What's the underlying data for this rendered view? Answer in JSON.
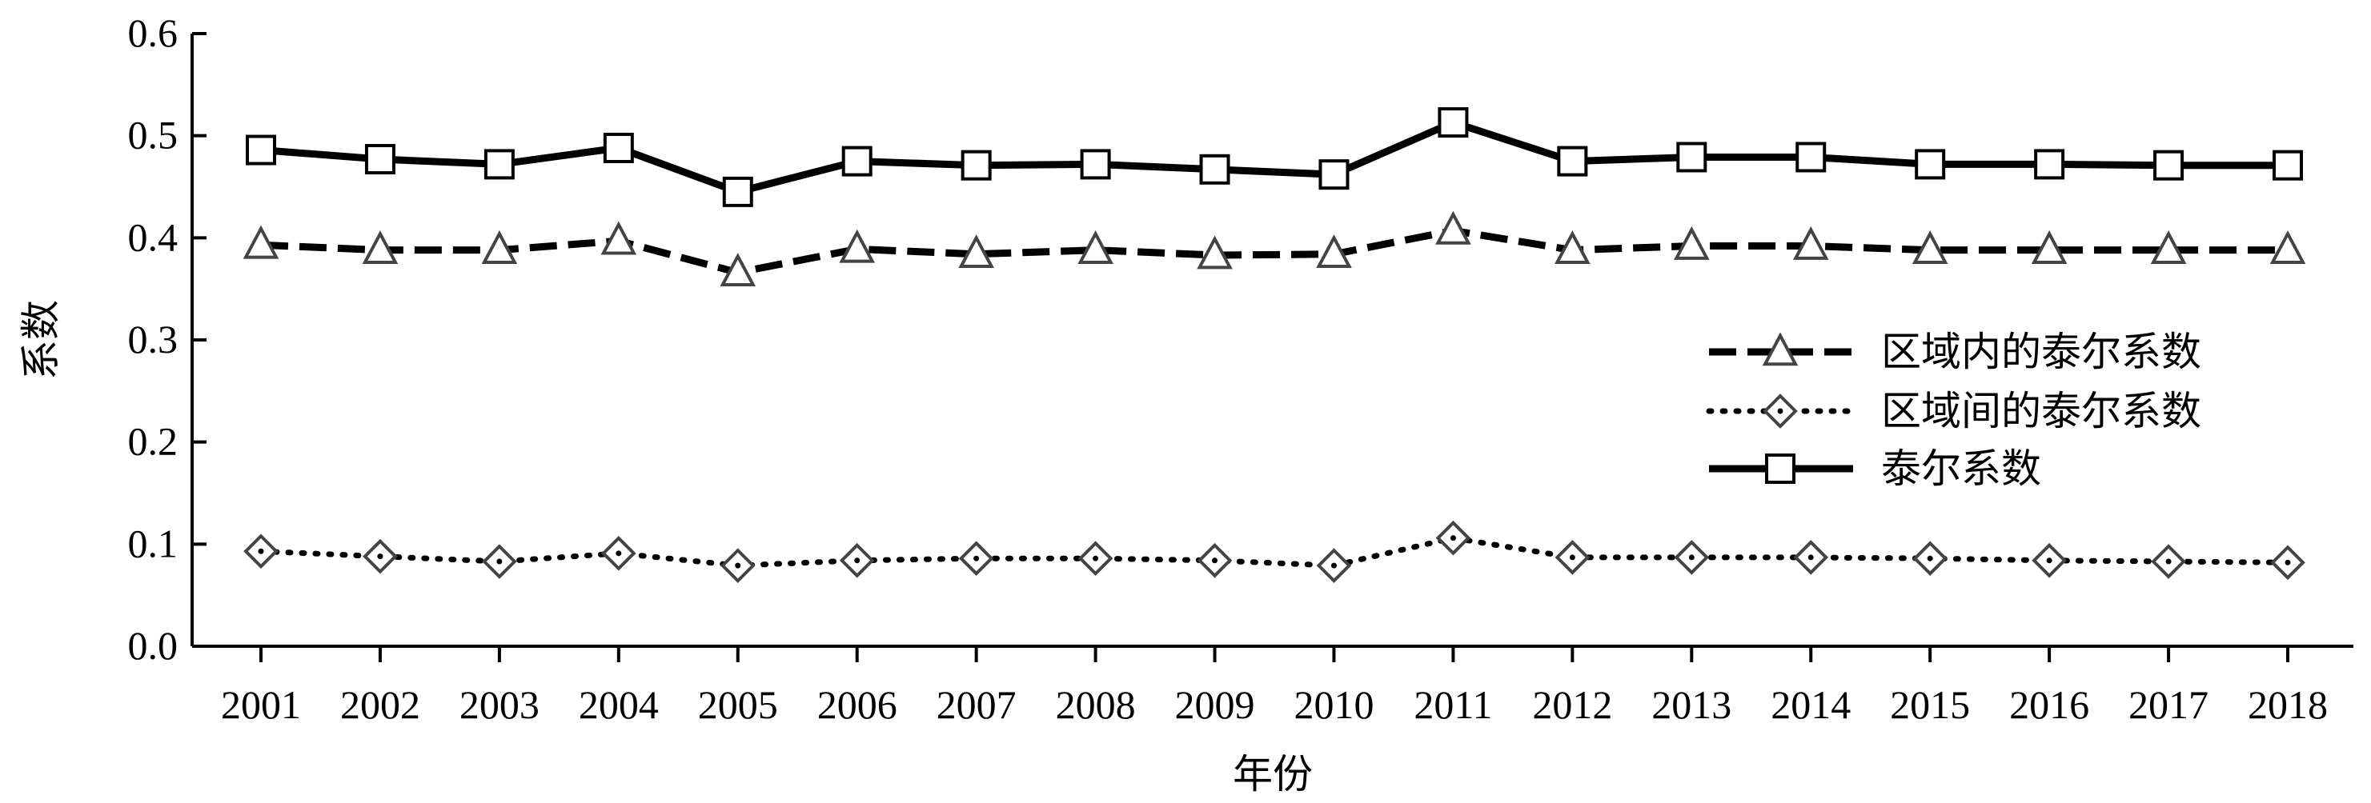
{
  "chart_data": {
    "type": "line",
    "xlabel": "年份",
    "ylabel": "系数",
    "ylim": [
      0,
      0.6
    ],
    "yticks": [
      "0.0",
      "0.1",
      "0.2",
      "0.3",
      "0.4",
      "0.5",
      "0.6"
    ],
    "categories": [
      "2001",
      "2002",
      "2003",
      "2004",
      "2005",
      "2006",
      "2007",
      "2008",
      "2009",
      "2010",
      "2011",
      "2012",
      "2013",
      "2014",
      "2015",
      "2016",
      "2017",
      "2018"
    ],
    "legend_position": "right",
    "series": [
      {
        "name": "区域内的泰尔系数",
        "marker": "triangle",
        "line": "dashed",
        "values": [
          0.393,
          0.388,
          0.388,
          0.397,
          0.366,
          0.389,
          0.384,
          0.388,
          0.383,
          0.384,
          0.407,
          0.388,
          0.392,
          0.392,
          0.388,
          0.388,
          0.388,
          0.388
        ]
      },
      {
        "name": "区域间的泰尔系数",
        "marker": "diamond",
        "line": "dotted",
        "values": [
          0.093,
          0.088,
          0.083,
          0.091,
          0.079,
          0.084,
          0.086,
          0.086,
          0.084,
          0.079,
          0.106,
          0.087,
          0.087,
          0.087,
          0.086,
          0.084,
          0.083,
          0.082
        ]
      },
      {
        "name": "泰尔系数",
        "marker": "square",
        "line": "solid",
        "values": [
          0.486,
          0.477,
          0.472,
          0.488,
          0.445,
          0.475,
          0.471,
          0.472,
          0.467,
          0.462,
          0.513,
          0.475,
          0.479,
          0.479,
          0.472,
          0.472,
          0.471,
          0.471
        ]
      }
    ]
  }
}
